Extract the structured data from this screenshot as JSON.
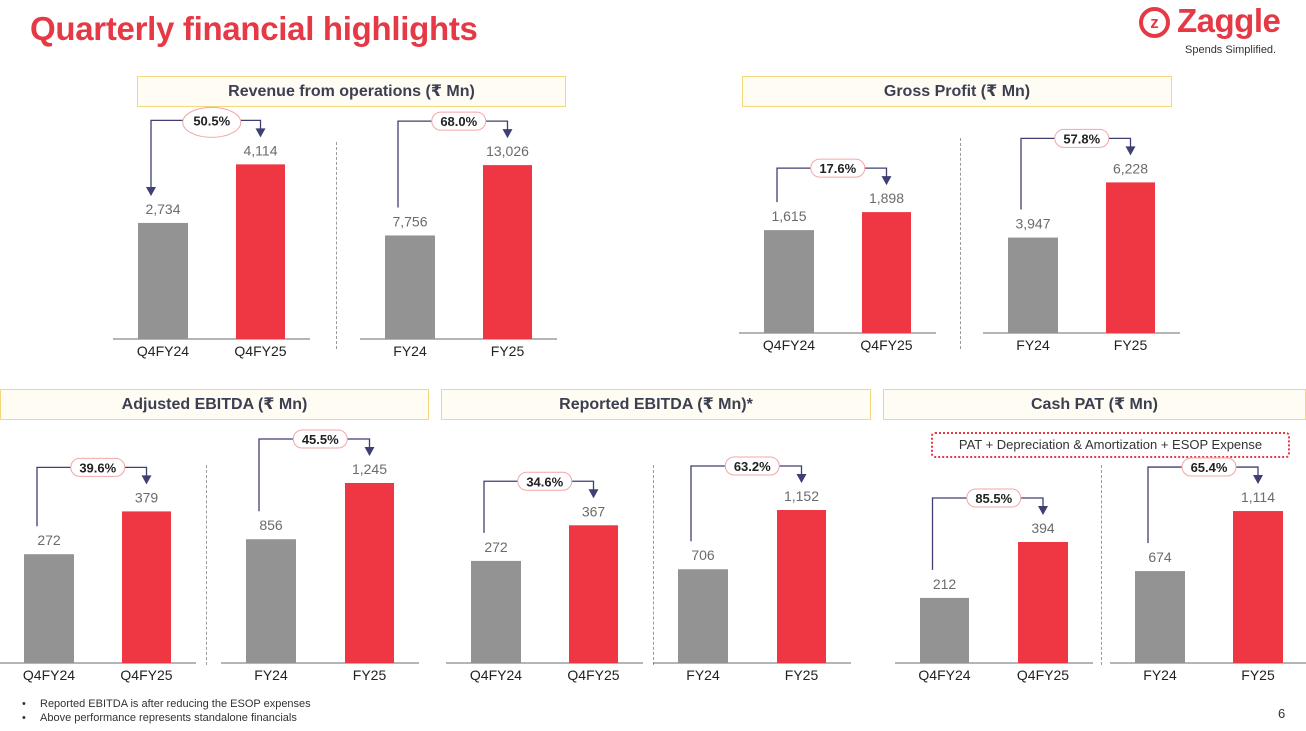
{
  "title": "Quarterly financial highlights",
  "logo": {
    "name": "Zaggle",
    "tagline": "Spends Simplified."
  },
  "sections": {
    "revenue": "Revenue from operations (₹ Mn)",
    "gross_profit": "Gross Profit (₹ Mn)",
    "adj_ebitda": "Adjusted EBITDA (₹ Mn)",
    "rep_ebitda": "Reported EBITDA (₹ Mn)*",
    "cash_pat": "Cash PAT (₹ Mn)"
  },
  "cash_pat_note": "PAT + Depreciation & Amortization + ESOP Expense",
  "colors": {
    "prior": "#939393",
    "current": "#ee3742",
    "accent": "#e63946",
    "arrow": "#3f3f73"
  },
  "chart_data": [
    {
      "id": "revenue-quarter",
      "section": "Revenue from operations (₹ Mn)",
      "type": "bar",
      "categories": [
        "Q4FY24",
        "Q4FY25"
      ],
      "values": [
        2734,
        4114
      ],
      "labels": [
        "2,734",
        "4,114"
      ],
      "growth": "50.5%"
    },
    {
      "id": "revenue-year",
      "section": "Revenue from operations (₹ Mn)",
      "type": "bar",
      "categories": [
        "FY24",
        "FY25"
      ],
      "values": [
        7756,
        13026
      ],
      "labels": [
        "7,756",
        "13,026"
      ],
      "growth": "68.0%"
    },
    {
      "id": "gp-quarter",
      "section": "Gross Profit (₹ Mn)",
      "type": "bar",
      "categories": [
        "Q4FY24",
        "Q4FY25"
      ],
      "values": [
        1615,
        1898
      ],
      "labels": [
        "1,615",
        "1,898"
      ],
      "growth": "17.6%"
    },
    {
      "id": "gp-year",
      "section": "Gross Profit (₹ Mn)",
      "type": "bar",
      "categories": [
        "FY24",
        "FY25"
      ],
      "values": [
        3947,
        6228
      ],
      "labels": [
        "3,947",
        "6,228"
      ],
      "growth": "57.8%"
    },
    {
      "id": "adj-quarter",
      "section": "Adjusted EBITDA (₹ Mn)",
      "type": "bar",
      "categories": [
        "Q4FY24",
        "Q4FY25"
      ],
      "values": [
        272,
        379
      ],
      "labels": [
        "272",
        "379"
      ],
      "growth": "39.6%"
    },
    {
      "id": "adj-year",
      "section": "Adjusted EBITDA (₹ Mn)",
      "type": "bar",
      "categories": [
        "FY24",
        "FY25"
      ],
      "values": [
        856,
        1245
      ],
      "labels": [
        "856",
        "1,245"
      ],
      "growth": "45.5%"
    },
    {
      "id": "rep-quarter",
      "section": "Reported EBITDA (₹ Mn)*",
      "type": "bar",
      "categories": [
        "Q4FY24",
        "Q4FY25"
      ],
      "values": [
        272,
        367
      ],
      "labels": [
        "272",
        "367"
      ],
      "growth": "34.6%"
    },
    {
      "id": "rep-year",
      "section": "Reported EBITDA (₹ Mn)*",
      "type": "bar",
      "categories": [
        "FY24",
        "FY25"
      ],
      "values": [
        706,
        1152
      ],
      "labels": [
        "706",
        "1,152"
      ],
      "growth": "63.2%"
    },
    {
      "id": "cash-quarter",
      "section": "Cash PAT (₹ Mn)",
      "type": "bar",
      "categories": [
        "Q4FY24",
        "Q4FY25"
      ],
      "values": [
        212,
        394
      ],
      "labels": [
        "212",
        "394"
      ],
      "growth": "85.5%"
    },
    {
      "id": "cash-year",
      "section": "Cash PAT (₹ Mn)",
      "type": "bar",
      "categories": [
        "FY24",
        "FY25"
      ],
      "values": [
        674,
        1114
      ],
      "labels": [
        "674",
        "1,114"
      ],
      "growth": "65.4%"
    }
  ],
  "footnotes": [
    "Reported EBITDA is after reducing the ESOP expenses",
    "Above performance represents standalone financials"
  ],
  "page_number": "6"
}
